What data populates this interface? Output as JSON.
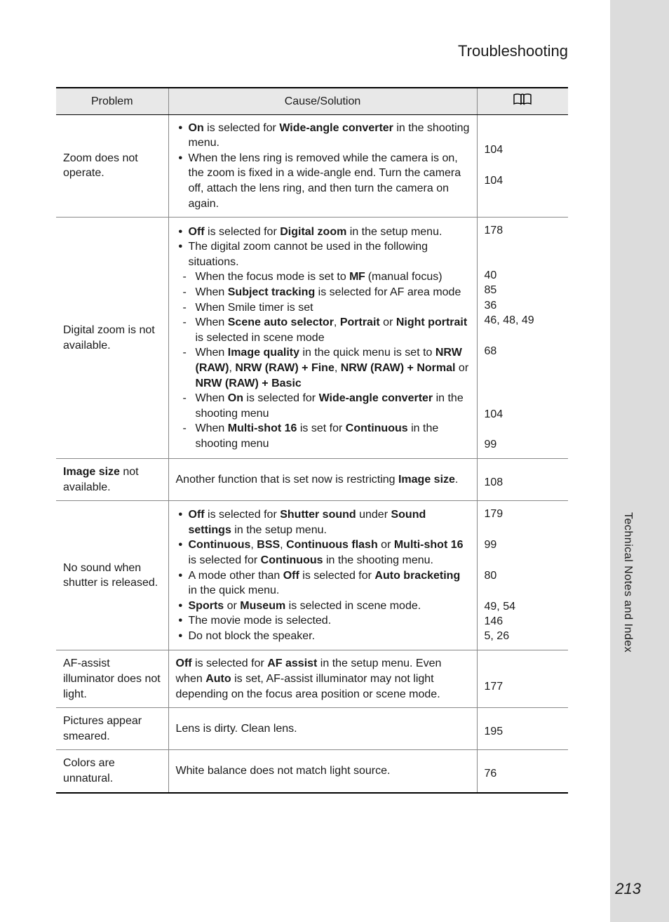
{
  "header": {
    "title": "Troubleshooting"
  },
  "side": {
    "label": "Technical Notes and Index"
  },
  "page_number": "213",
  "table": {
    "headers": {
      "problem": "Problem",
      "cause": "Cause/Solution",
      "page": "book-icon"
    },
    "rows": [
      {
        "problem_html": "Zoom does not operate.",
        "cause_items": [
          {
            "type": "bullet",
            "html": "<span class='b'>On</span> is selected for <span class='b'>Wide-angle converter</span> in the shooting menu."
          },
          {
            "type": "bullet",
            "html": "When the lens ring is removed while the camera is on, the zoom is fixed in a wide-angle end. Turn the camera off, attach the lens ring, and then turn the camera on again."
          }
        ],
        "pages": [
          "104",
          "104"
        ],
        "page_offsets": [
          0,
          44
        ]
      },
      {
        "problem_html": "Digital zoom is not available.",
        "cause_items": [
          {
            "type": "bullet",
            "html": "<span class='b'>Off</span> is selected for <span class='b'>Digital zoom</span> in the setup menu."
          },
          {
            "type": "bullet",
            "html": "The digital zoom cannot be used in the following situations."
          },
          {
            "type": "dash",
            "html": "When the focus mode is set to <span class='mf'>MF</span> (manual focus)"
          },
          {
            "type": "dash",
            "html": "When <span class='b'>Subject tracking</span> is selected for AF area mode"
          },
          {
            "type": "dash",
            "html": "When Smile timer is set"
          },
          {
            "type": "dash",
            "html": "When <span class='b'>Scene auto selector</span>, <span class='b'>Portrait</span> or <span class='b'>Night portrait</span> is selected in scene mode"
          },
          {
            "type": "dash",
            "html": "When <span class='b'>Image quality</span> in the quick menu is set to <span class='b'>NRW (RAW)</span>, <span class='b'>NRW (RAW) + Fine</span>, <span class='b'>NRW (RAW) + Normal</span> or <span class='b'>NRW (RAW) + Basic</span>"
          },
          {
            "type": "dash",
            "html": "When <span class='b'>On</span> is selected for <span class='b'>Wide-angle converter</span> in the shooting menu"
          },
          {
            "type": "dash",
            "html": "When <span class='b'>Multi-shot 16</span> is set for <span class='b'>Continuous</span> in the shooting menu"
          }
        ],
        "pages": [
          "178",
          "",
          "40",
          "85",
          "36",
          "46, 48, 49",
          "68",
          "104",
          "99"
        ],
        "page_offsets": [
          0,
          0,
          64,
          85,
          107,
          128,
          172,
          262,
          305
        ]
      },
      {
        "problem_html": "<span class='b'>Image size</span> not available.",
        "cause_items": [
          {
            "type": "plain",
            "html": "Another function that is set now is restricting <span class='b'>Image size</span>."
          }
        ],
        "pages": [
          "108"
        ],
        "page_offsets": [
          8
        ]
      },
      {
        "problem_html": "No sound when shutter is released.",
        "cause_items": [
          {
            "type": "bullet",
            "html": "<span class='b'>Off</span> is selected for <span class='b'>Shutter sound</span> under <span class='b'>Sound settings</span> in the setup menu."
          },
          {
            "type": "bullet",
            "html": "<span class='b'>Continuous</span>, <span class='b'>BSS</span>, <span class='b'>Continuous flash</span> or <span class='b'>Multi-shot 16</span> is selected for <span class='b'>Continuous</span> in the shooting menu."
          },
          {
            "type": "bullet",
            "html": "A mode other than <span class='b'>Off</span> is selected for <span class='b'>Auto bracketing</span> in the quick menu."
          },
          {
            "type": "bullet",
            "html": "<span class='b'>Sports</span> or <span class='b'>Museum</span> is selected in scene mode."
          },
          {
            "type": "bullet",
            "html": "The movie mode is selected."
          },
          {
            "type": "bullet",
            "html": "Do not block the speaker."
          }
        ],
        "pages": [
          "179",
          "99",
          "80",
          "49, 54",
          "146",
          "5, 26"
        ],
        "page_offsets": [
          0,
          44,
          88,
          132,
          153,
          174
        ]
      },
      {
        "problem_html": "AF-assist illuminator does not light.",
        "cause_items": [
          {
            "type": "plain",
            "html": "<span class='b'>Off</span> is selected for <span class='b'>AF assist</span> in the setup menu. Even when <span class='b'>Auto</span> is set, AF-assist illuminator may not light depending on the focus area position or scene mode."
          }
        ],
        "pages": [
          "177"
        ],
        "page_offsets": [
          22
        ]
      },
      {
        "problem_html": "Pictures appear smeared.",
        "cause_items": [
          {
            "type": "plain",
            "html": "Lens is dirty. Clean lens."
          }
        ],
        "pages": [
          "195"
        ],
        "page_offsets": [
          8
        ]
      },
      {
        "problem_html": "Colors are unnatural.",
        "cause_items": [
          {
            "type": "plain",
            "html": "White balance does not match light source."
          }
        ],
        "pages": [
          "76"
        ],
        "page_offsets": [
          8
        ]
      }
    ]
  }
}
